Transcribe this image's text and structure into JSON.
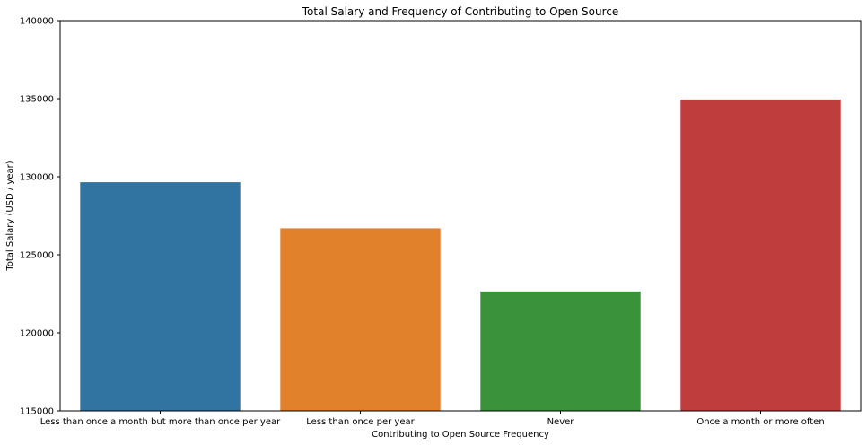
{
  "chart_data": {
    "type": "bar",
    "title": "Total Salary and Frequency of Contributing to Open Source",
    "xlabel": "Contributing to Open Source Frequency",
    "ylabel": "Total Salary (USD / year)",
    "categories": [
      "Less than once a month but more than once per year",
      "Less than once per year",
      "Never",
      "Once a month or more often"
    ],
    "values": [
      129650,
      126700,
      122650,
      134950
    ],
    "colors": [
      "#3274a1",
      "#e1812c",
      "#3a923a",
      "#c03d3e"
    ],
    "ylim": [
      115000,
      140000
    ],
    "yticks": [
      115000,
      120000,
      125000,
      130000,
      135000,
      140000
    ],
    "grid": false,
    "legend": "none"
  }
}
